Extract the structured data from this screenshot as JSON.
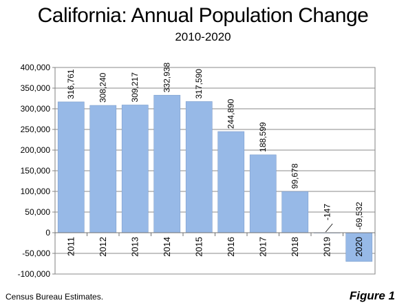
{
  "chart_data": {
    "type": "bar",
    "title": "California: Annual Population Change",
    "subtitle": "2010-2020",
    "xlabel": "",
    "ylabel": "",
    "categories": [
      "2011",
      "2012",
      "2013",
      "2014",
      "2015",
      "2016",
      "2017",
      "2018",
      "2019",
      "2020"
    ],
    "values": [
      316761,
      308240,
      309217,
      332938,
      317590,
      244890,
      188599,
      99678,
      -147,
      -69532
    ],
    "data_labels": [
      "316,761",
      "308,240",
      "309,217",
      "332,938",
      "317,590",
      "244,890",
      "188,599",
      "99,678",
      "-147",
      "-69,532"
    ],
    "ylim": [
      -100000,
      400000
    ],
    "yticks": [
      -100000,
      -50000,
      0,
      50000,
      100000,
      150000,
      200000,
      250000,
      300000,
      350000,
      400000
    ],
    "ytick_labels": [
      "-100,000",
      "-50,000",
      "0",
      "50,000",
      "100,000",
      "150,000",
      "200,000",
      "250,000",
      "300,000",
      "350,000",
      "400,000"
    ],
    "grid": true,
    "legend": "none",
    "bar_color": "#97b9e7",
    "bar_edge_color": "#7f9fcc"
  },
  "footer": {
    "source": "Census Bureau Estimates.",
    "figure_label": "Figure 1"
  }
}
